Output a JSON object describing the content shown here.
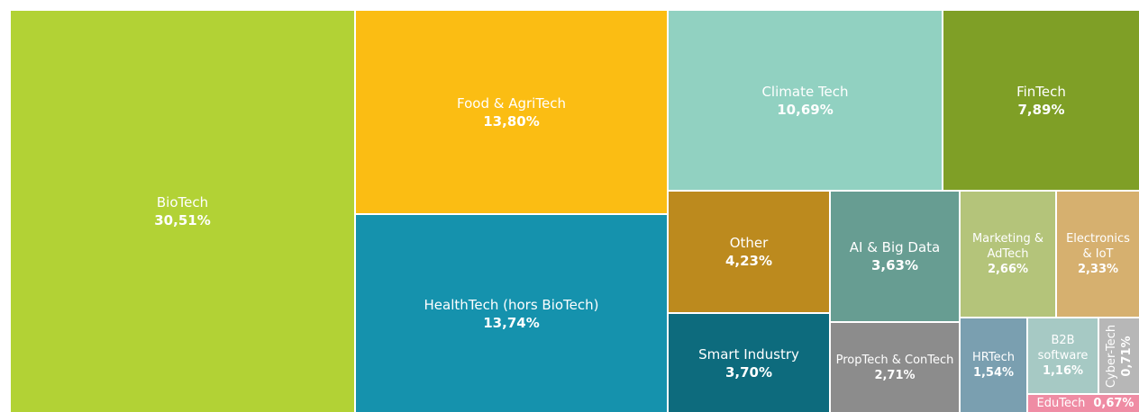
{
  "chart_data": {
    "type": "treemap",
    "categories": [
      "BioTech",
      "Food & AgriTech",
      "HealthTech (hors BioTech)",
      "Climate Tech",
      "FinTech",
      "Other",
      "Smart Industry",
      "AI & Big Data",
      "PropTech & ConTech",
      "Marketing & AdTech",
      "Electronics & IoT",
      "HRTech",
      "B2B software",
      "Cyber-Tech",
      "EduTech"
    ],
    "values": [
      30.51,
      13.8,
      13.74,
      10.69,
      7.89,
      4.23,
      3.7,
      3.63,
      2.71,
      2.66,
      2.33,
      1.54,
      1.16,
      0.71,
      0.67
    ],
    "value_labels": [
      "30,51%",
      "13,80%",
      "13,74%",
      "10,69%",
      "7,89%",
      "4,23%",
      "3,70%",
      "3,63%",
      "2,71%",
      "2,66%",
      "2,33%",
      "1,54%",
      "1,16%",
      "0,71%",
      "0,67%"
    ],
    "colors": [
      "#b2d235",
      "#fbbd13",
      "#1592ad",
      "#91d1c1",
      "#7f9f26",
      "#bc8a1e",
      "#0d6b7d",
      "#679d92",
      "#8c8c8c",
      "#b4c47a",
      "#d6b06f",
      "#7a9fb0",
      "#a6c9c4",
      "#b7b7b7",
      "#ef8ca4"
    ]
  }
}
